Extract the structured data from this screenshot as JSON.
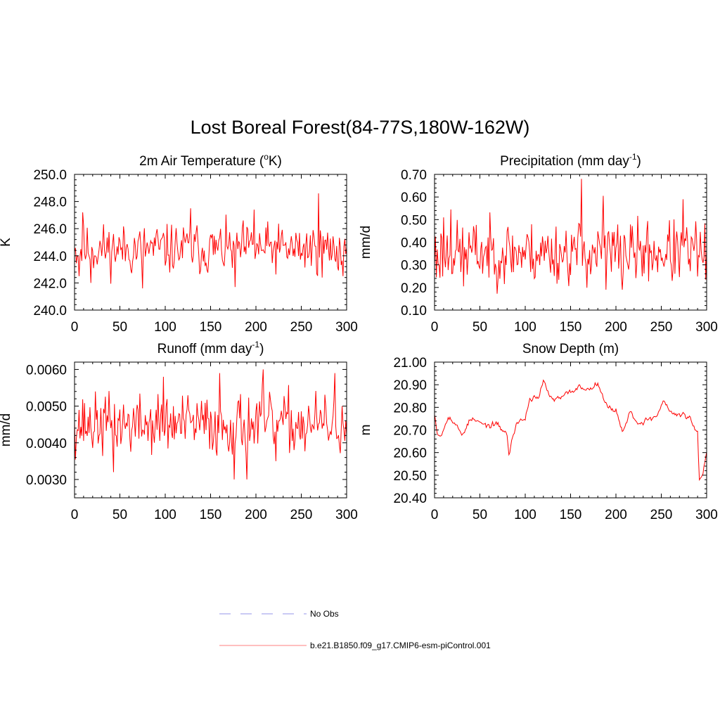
{
  "figure": {
    "title": "Lost Boreal Forest(84-77S,180W-162W)"
  },
  "chart_data": [
    {
      "type": "line",
      "title_main": "2m Air Temperature (",
      "title_sup": "o",
      "title_tail": "K)",
      "ylabel": "K",
      "xlim": [
        0,
        300
      ],
      "ylim": [
        240,
        250
      ],
      "xticks": [
        0,
        50,
        100,
        150,
        200,
        250,
        300
      ],
      "xtick_labels": [
        "0",
        "50",
        "100",
        "150",
        "200",
        "250",
        "300"
      ],
      "yticks": [
        240,
        242,
        244,
        246,
        248,
        250
      ],
      "ytick_labels": [
        "240.0",
        "242.0",
        "244.0",
        "246.0",
        "248.0",
        "250.0"
      ],
      "seed": 11,
      "stats": {
        "base": 244.5,
        "amp": 1.05,
        "smooth": 0.15
      },
      "anchors": [
        [
          0,
          244.3
        ],
        [
          3,
          244.0
        ],
        [
          5,
          242.5
        ],
        [
          9,
          247.2
        ],
        [
          18,
          242.0
        ],
        [
          75,
          241.6
        ],
        [
          128,
          247.5
        ],
        [
          177,
          241.7
        ],
        [
          198,
          247.4
        ],
        [
          269,
          248.6
        ],
        [
          273,
          242.4
        ],
        [
          296,
          242.5
        ],
        [
          300,
          244.6
        ]
      ]
    },
    {
      "type": "line",
      "title_main": "Precipitation (mm day",
      "title_sup": "-1",
      "title_tail": ")",
      "ylabel": "mm/d",
      "xlim": [
        0,
        300
      ],
      "ylim": [
        0.1,
        0.7
      ],
      "xticks": [
        0,
        50,
        100,
        150,
        200,
        250,
        300
      ],
      "xtick_labels": [
        "0",
        "50",
        "100",
        "150",
        "200",
        "250",
        "300"
      ],
      "yticks": [
        0.1,
        0.2,
        0.3,
        0.4,
        0.5,
        0.6,
        0.7
      ],
      "ytick_labels": [
        "0.10",
        "0.20",
        "0.30",
        "0.40",
        "0.50",
        "0.60",
        "0.70"
      ],
      "seed": 23,
      "stats": {
        "base": 0.355,
        "amp": 0.075,
        "smooth": 0.1
      },
      "anchors": [
        [
          0,
          0.3
        ],
        [
          2,
          0.245
        ],
        [
          10,
          0.51
        ],
        [
          18,
          0.545
        ],
        [
          32,
          0.205
        ],
        [
          162,
          0.68
        ],
        [
          186,
          0.605
        ],
        [
          189,
          0.19
        ],
        [
          207,
          0.19
        ],
        [
          274,
          0.59
        ],
        [
          300,
          0.37
        ]
      ]
    },
    {
      "type": "line",
      "title_main": "Runoff (mm day",
      "title_sup": "-1",
      "title_tail": ")",
      "ylabel": "mm/d",
      "xlim": [
        0,
        300
      ],
      "ylim": [
        0.0025,
        0.0062
      ],
      "xticks": [
        0,
        50,
        100,
        150,
        200,
        250,
        300
      ],
      "xtick_labels": [
        "0",
        "50",
        "100",
        "150",
        "200",
        "250",
        "300"
      ],
      "yticks": [
        0.003,
        0.004,
        0.005,
        0.006
      ],
      "ytick_labels": [
        "0.0030",
        "0.0040",
        "0.0050",
        "0.0060"
      ],
      "seed": 37,
      "stats": {
        "base": 0.0045,
        "amp": 0.00045,
        "smooth": 0.1
      },
      "anchors": [
        [
          0,
          0.0046
        ],
        [
          43,
          0.0032
        ],
        [
          98,
          0.0058
        ],
        [
          160,
          0.0059
        ],
        [
          176,
          0.003
        ],
        [
          190,
          0.003
        ],
        [
          208,
          0.006
        ],
        [
          222,
          0.0035
        ],
        [
          287,
          0.0059
        ],
        [
          300,
          0.0042
        ]
      ]
    },
    {
      "type": "line",
      "title_main": "Snow Depth (m)",
      "title_sup": "",
      "title_tail": "",
      "ylabel": "m",
      "xlim": [
        0,
        300
      ],
      "ylim": [
        20.4,
        21.0
      ],
      "xticks": [
        0,
        50,
        100,
        150,
        200,
        250,
        300
      ],
      "xtick_labels": [
        "0",
        "50",
        "100",
        "150",
        "200",
        "250",
        "300"
      ],
      "yticks": [
        20.4,
        20.5,
        20.6,
        20.7,
        20.8,
        20.9,
        21.0
      ],
      "ytick_labels": [
        "20.40",
        "20.50",
        "20.60",
        "20.70",
        "20.80",
        "20.90",
        "21.00"
      ],
      "seed": 53,
      "stats": {
        "base": 0,
        "amp": 0.013,
        "smooth": 0.55
      },
      "trend": [
        [
          0,
          20.78
        ],
        [
          3,
          20.69
        ],
        [
          8,
          20.68
        ],
        [
          15,
          20.77
        ],
        [
          30,
          20.68
        ],
        [
          40,
          20.75
        ],
        [
          55,
          20.72
        ],
        [
          70,
          20.72
        ],
        [
          80,
          20.68
        ],
        [
          82,
          20.59
        ],
        [
          90,
          20.73
        ],
        [
          100,
          20.75
        ],
        [
          105,
          20.84
        ],
        [
          115,
          20.85
        ],
        [
          120,
          20.91
        ],
        [
          130,
          20.83
        ],
        [
          140,
          20.84
        ],
        [
          150,
          20.87
        ],
        [
          160,
          20.89
        ],
        [
          172,
          20.88
        ],
        [
          180,
          20.92
        ],
        [
          190,
          20.8
        ],
        [
          200,
          20.79
        ],
        [
          208,
          20.69
        ],
        [
          215,
          20.78
        ],
        [
          225,
          20.73
        ],
        [
          245,
          20.76
        ],
        [
          252,
          20.83
        ],
        [
          262,
          20.77
        ],
        [
          280,
          20.76
        ],
        [
          285,
          20.72
        ],
        [
          290,
          20.69
        ],
        [
          292,
          20.47
        ],
        [
          296,
          20.5
        ],
        [
          300,
          20.6
        ]
      ]
    }
  ],
  "legend": [
    {
      "label": "No Obs",
      "color": "#aaaaee",
      "dash": "16,14"
    },
    {
      "label": "b.e21.B1850.f09_g17.CMIP6-esm-piControl.001",
      "color": "#ff9999",
      "dash": ""
    }
  ]
}
